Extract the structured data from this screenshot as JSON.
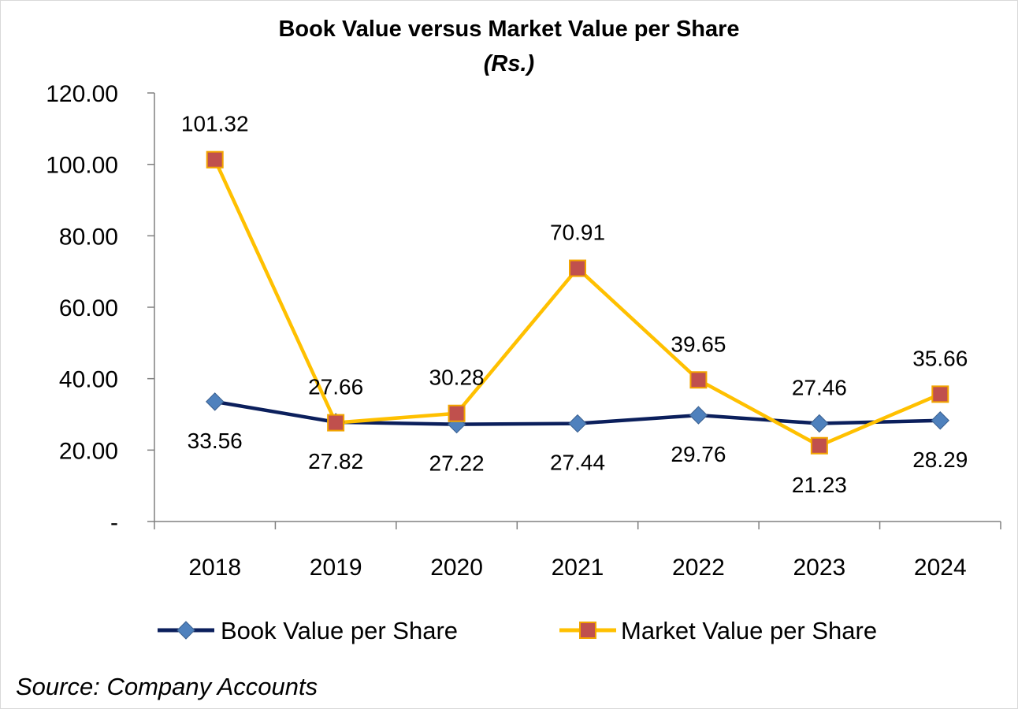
{
  "chart_data": {
    "type": "line",
    "title": "Book Value versus Market Value per Share",
    "subtitle": "(Rs.)",
    "categories": [
      "2018",
      "2019",
      "2020",
      "2021",
      "2022",
      "2023",
      "2024"
    ],
    "series": [
      {
        "name": "Book Value per Share",
        "values": [
          33.56,
          27.82,
          27.22,
          27.44,
          29.76,
          27.46,
          28.29
        ],
        "labels": [
          "33.56",
          "27.82",
          "27.22",
          "27.44",
          "29.76",
          "27.46",
          "28.29"
        ],
        "label_positions": [
          "below",
          "below",
          "below",
          "below",
          "below",
          "above",
          "below"
        ],
        "line_color": "#0b1f5c",
        "marker": "diamond",
        "marker_color": "#4f81bd"
      },
      {
        "name": "Market Value per Share",
        "values": [
          101.32,
          27.66,
          30.28,
          70.91,
          39.65,
          21.23,
          35.66
        ],
        "labels": [
          "101.32",
          "27.66",
          "30.28",
          "70.91",
          "39.65",
          "21.23",
          "35.66"
        ],
        "label_positions": [
          "above",
          "above",
          "above",
          "above",
          "above",
          "below",
          "above"
        ],
        "line_color": "#ffc000",
        "marker": "square",
        "marker_color": "#c0504d"
      }
    ],
    "y_ticks": [
      0,
      20,
      40,
      60,
      80,
      100,
      120
    ],
    "y_tick_labels": [
      "-",
      "20.00",
      "40.00",
      "60.00",
      "80.00",
      "100.00",
      "120.00"
    ],
    "ylim": [
      0,
      120
    ],
    "grid": false,
    "legend_position": "bottom",
    "source": "Source: Company Accounts"
  }
}
